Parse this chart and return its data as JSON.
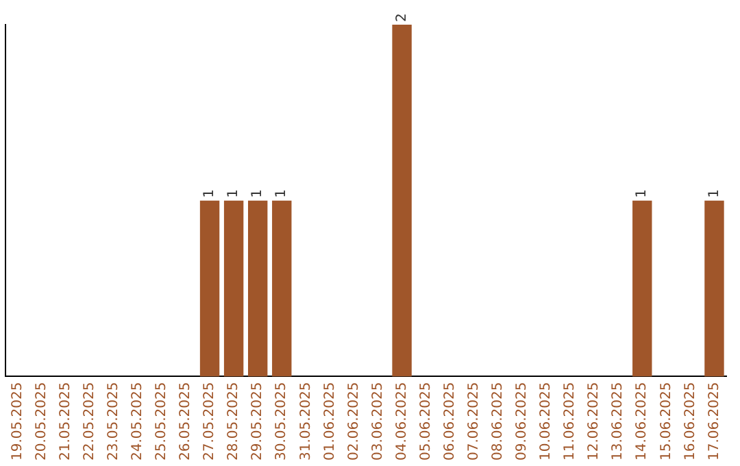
{
  "chart_data": {
    "type": "bar",
    "categories": [
      "19.05.2025",
      "20.05.2025",
      "21.05.2025",
      "22.05.2025",
      "23.05.2025",
      "24.05.2025",
      "25.05.2025",
      "26.05.2025",
      "27.05.2025",
      "28.05.2025",
      "29.05.2025",
      "30.05.2025",
      "31.05.2025",
      "01.06.2025",
      "02.06.2025",
      "03.06.2025",
      "04.06.2025",
      "05.06.2025",
      "06.06.2025",
      "07.06.2025",
      "08.06.2025",
      "09.06.2025",
      "10.06.2025",
      "11.06.2025",
      "12.06.2025",
      "13.06.2025",
      "14.06.2025",
      "15.06.2025",
      "16.06.2025",
      "17.06.2025"
    ],
    "values": [
      0,
      0,
      0,
      0,
      0,
      0,
      0,
      0,
      1,
      1,
      1,
      1,
      0,
      0,
      0,
      0,
      2,
      0,
      0,
      0,
      0,
      0,
      0,
      0,
      0,
      0,
      1,
      0,
      0,
      1
    ],
    "value_labels": [
      null,
      null,
      null,
      null,
      null,
      null,
      null,
      null,
      "1",
      "1",
      "1",
      "1",
      null,
      null,
      null,
      null,
      "2",
      null,
      null,
      null,
      null,
      null,
      null,
      null,
      null,
      null,
      "1",
      null,
      null,
      "1"
    ],
    "color": "#a0562a",
    "grid": false,
    "legend": false
  }
}
